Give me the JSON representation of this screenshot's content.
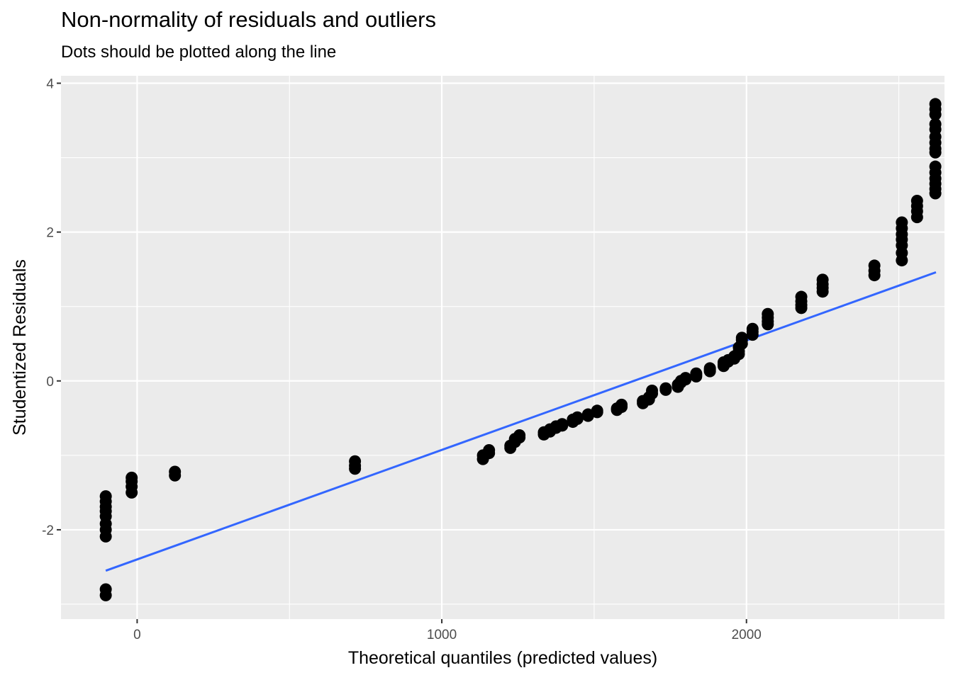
{
  "chart_data": {
    "type": "scatter",
    "title": "Non-normality of residuals and outliers",
    "subtitle": "Dots should be plotted along the line",
    "xlabel": "Theoretical quantiles (predicted values)",
    "ylabel": "Studentized Residuals",
    "xlim": [
      -250,
      2650
    ],
    "ylim": [
      -3.2,
      4.1
    ],
    "x_ticks": [
      0,
      1000,
      2000
    ],
    "x_tick_labels": [
      "0",
      "1000",
      "2000"
    ],
    "y_ticks": [
      -2,
      0,
      2,
      4
    ],
    "y_tick_labels": [
      "-2",
      "0",
      "2",
      "4"
    ],
    "grid": true,
    "background": "#ebebeb",
    "point_color": "#000000",
    "line_color": "#3366ff",
    "reference_line": {
      "x": [
        -103,
        2622
      ],
      "y": [
        -2.55,
        1.46
      ]
    },
    "groups": [
      {
        "x": -103,
        "y": [
          -2.88,
          -2.8,
          -2.09,
          -2.0,
          -1.92,
          -1.82,
          -1.75,
          -1.69,
          -1.62,
          -1.55
        ]
      },
      {
        "x": -18,
        "y": [
          -1.5,
          -1.42,
          -1.35,
          -1.3
        ]
      },
      {
        "x": 124,
        "y": [
          -1.27,
          -1.22
        ]
      },
      {
        "x": 715,
        "y": [
          -1.18,
          -1.14,
          -1.08
        ]
      },
      {
        "x": 1135,
        "y": [
          -1.05,
          -1.0
        ]
      },
      {
        "x": 1155,
        "y": [
          -0.97,
          -0.93
        ]
      },
      {
        "x": 1225,
        "y": [
          -0.9,
          -0.87
        ]
      },
      {
        "x": 1240,
        "y": [
          -0.82,
          -0.78
        ]
      },
      {
        "x": 1255,
        "y": [
          -0.76,
          -0.73
        ]
      },
      {
        "x": 1335,
        "y": [
          -0.72,
          -0.69
        ]
      },
      {
        "x": 1355,
        "y": [
          -0.68,
          -0.65
        ]
      },
      {
        "x": 1375,
        "y": [
          -0.63,
          -0.61
        ]
      },
      {
        "x": 1395,
        "y": [
          -0.6,
          -0.58
        ]
      },
      {
        "x": 1430,
        "y": [
          -0.55,
          -0.52
        ]
      },
      {
        "x": 1445,
        "y": [
          -0.51,
          -0.49
        ]
      },
      {
        "x": 1480,
        "y": [
          -0.47,
          -0.45
        ]
      },
      {
        "x": 1510,
        "y": [
          -0.42,
          -0.4
        ]
      },
      {
        "x": 1575,
        "y": [
          -0.39,
          -0.37
        ]
      },
      {
        "x": 1590,
        "y": [
          -0.35,
          -0.32
        ]
      },
      {
        "x": 1660,
        "y": [
          -0.3,
          -0.27
        ]
      },
      {
        "x": 1680,
        "y": [
          -0.25,
          -0.22
        ]
      },
      {
        "x": 1690,
        "y": [
          -0.17,
          -0.13
        ]
      },
      {
        "x": 1735,
        "y": [
          -0.12,
          -0.1
        ]
      },
      {
        "x": 1775,
        "y": [
          -0.08,
          -0.05
        ]
      },
      {
        "x": 1785,
        "y": [
          -0.02,
          0.0
        ]
      },
      {
        "x": 1800,
        "y": [
          0.02,
          0.04
        ]
      },
      {
        "x": 1835,
        "y": [
          0.06,
          0.08,
          0.1
        ]
      },
      {
        "x": 1880,
        "y": [
          0.13,
          0.15,
          0.17
        ]
      },
      {
        "x": 1925,
        "y": [
          0.2,
          0.22,
          0.25
        ]
      },
      {
        "x": 1940,
        "y": [
          0.26,
          0.28
        ]
      },
      {
        "x": 1960,
        "y": [
          0.3,
          0.33
        ]
      },
      {
        "x": 1975,
        "y": [
          0.36,
          0.4,
          0.45
        ]
      },
      {
        "x": 1985,
        "y": [
          0.5,
          0.55,
          0.58
        ]
      },
      {
        "x": 2020,
        "y": [
          0.62,
          0.66,
          0.7
        ]
      },
      {
        "x": 2070,
        "y": [
          0.76,
          0.8,
          0.85,
          0.9
        ]
      },
      {
        "x": 2180,
        "y": [
          0.98,
          1.02,
          1.07,
          1.13
        ]
      },
      {
        "x": 2250,
        "y": [
          1.2,
          1.25,
          1.3,
          1.36
        ]
      },
      {
        "x": 2420,
        "y": [
          1.42,
          1.48,
          1.55
        ]
      },
      {
        "x": 2510,
        "y": [
          1.62,
          1.72,
          1.82,
          1.9,
          1.97,
          2.05,
          2.13
        ]
      },
      {
        "x": 2560,
        "y": [
          2.2,
          2.28,
          2.35,
          2.42
        ]
      },
      {
        "x": 2620,
        "y": [
          2.52,
          2.58,
          2.65,
          2.72,
          2.8,
          2.88,
          3.07,
          3.12,
          3.2,
          3.28,
          3.38,
          3.45,
          3.58,
          3.65,
          3.72
        ]
      }
    ]
  }
}
